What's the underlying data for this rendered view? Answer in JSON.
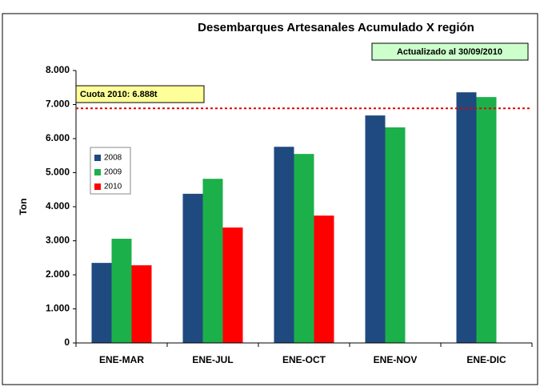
{
  "chart_data": {
    "type": "bar",
    "title": "Desembarques Artesanales Acumulado X región",
    "subtitle": "Actualizado al 30/09/2010",
    "y_label": "Ton",
    "categories": [
      "ENE-MAR",
      "ENE-JUL",
      "ENE-OCT",
      "ENE-NOV",
      "ENE-DIC"
    ],
    "series": [
      {
        "name": "2008",
        "color": "#1f4a80",
        "values": [
          2350,
          4380,
          5760,
          6680,
          7360
        ]
      },
      {
        "name": "2009",
        "color": "#1cb04a",
        "values": [
          3060,
          4820,
          5550,
          6330,
          7220
        ]
      },
      {
        "name": "2010",
        "color": "#ff0000",
        "values": [
          2280,
          3390,
          3740,
          null,
          null
        ]
      }
    ],
    "reference_line": {
      "value": 6888,
      "label": "Cuota 2010: 6.888t",
      "color": "#e00000"
    },
    "ylim": [
      0,
      8000
    ],
    "yticks": [
      0,
      {
        "value": 1000,
        "label": "1.000"
      },
      {
        "value": 2000,
        "label": "2.000"
      },
      {
        "value": 3000,
        "label": "3.000"
      },
      {
        "value": 4000,
        "label": "4.000"
      },
      {
        "value": 5000,
        "label": "5.000"
      },
      {
        "value": 6000,
        "label": "6.000"
      },
      {
        "value": 7000,
        "label": "7.000"
      },
      {
        "value": 8000,
        "label": "8.000"
      }
    ],
    "grid": false
  }
}
